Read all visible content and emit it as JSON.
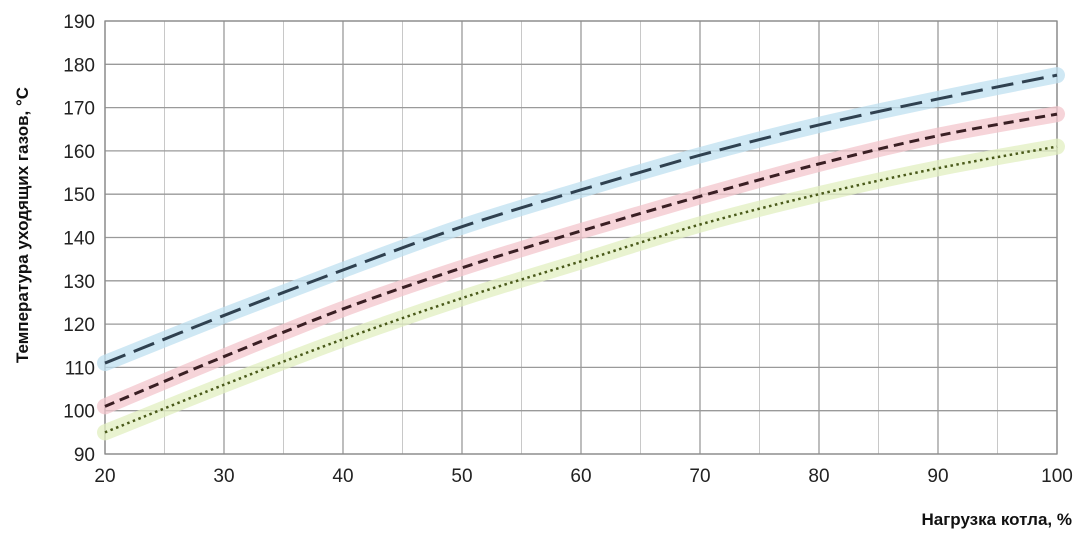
{
  "chart_data": {
    "type": "line",
    "xlabel": "Нагрузка котла, %",
    "ylabel": "Температура уходящих газов, °С",
    "xlim": [
      20,
      100
    ],
    "ylim": [
      90,
      190
    ],
    "x_ticks": [
      "20",
      "30",
      "40",
      "50",
      "60",
      "70",
      "80",
      "90",
      "100"
    ],
    "y_ticks": [
      "90",
      "100",
      "110",
      "120",
      "130",
      "140",
      "150",
      "160",
      "170",
      "180",
      "190"
    ],
    "grid": true,
    "legend": "none",
    "x": [
      20,
      30,
      40,
      50,
      60,
      70,
      80,
      90,
      100
    ],
    "series": [
      {
        "values": [
          111,
          122,
          132.5,
          142.5,
          151,
          159,
          166,
          172,
          177.5
        ],
        "color": "#2f4150",
        "glow": "#bfe0f0",
        "dash": "long-dash"
      },
      {
        "values": [
          101,
          112.5,
          123.5,
          133,
          141.5,
          149.5,
          157,
          163.5,
          168.5
        ],
        "color": "#3a1f24",
        "glow": "#f3c6cc",
        "dash": "short-dash"
      },
      {
        "values": [
          95,
          106,
          116.5,
          126,
          134.5,
          143,
          150,
          156,
          161
        ],
        "color": "#4a5a1a",
        "glow": "#e2efc0",
        "dash": "dotted"
      }
    ]
  }
}
